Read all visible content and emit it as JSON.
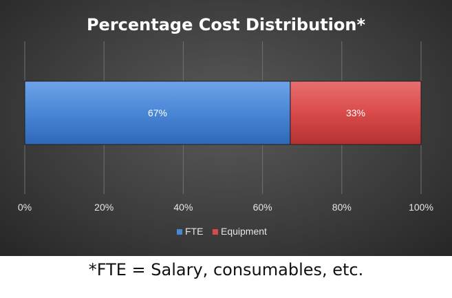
{
  "chart_data": {
    "type": "bar",
    "orientation": "horizontal",
    "stacked": true,
    "title": "Percentage Cost Distribution*",
    "categories": [
      ""
    ],
    "series": [
      {
        "name": "FTE",
        "values": [
          67
        ],
        "label": "67%",
        "color": "#4a86d6"
      },
      {
        "name": "Equipment",
        "values": [
          33
        ],
        "label": "33%",
        "color": "#d94a4a"
      }
    ],
    "xlim": [
      0,
      100
    ],
    "xticks": [
      {
        "value": 0,
        "label": "0%"
      },
      {
        "value": 20,
        "label": "20%"
      },
      {
        "value": 40,
        "label": "40%"
      },
      {
        "value": 60,
        "label": "60%"
      },
      {
        "value": 80,
        "label": "80%"
      },
      {
        "value": 100,
        "label": "100%"
      }
    ],
    "grid": true,
    "legend_position": "bottom"
  },
  "footnote": "*FTE = Salary, consumables, etc."
}
